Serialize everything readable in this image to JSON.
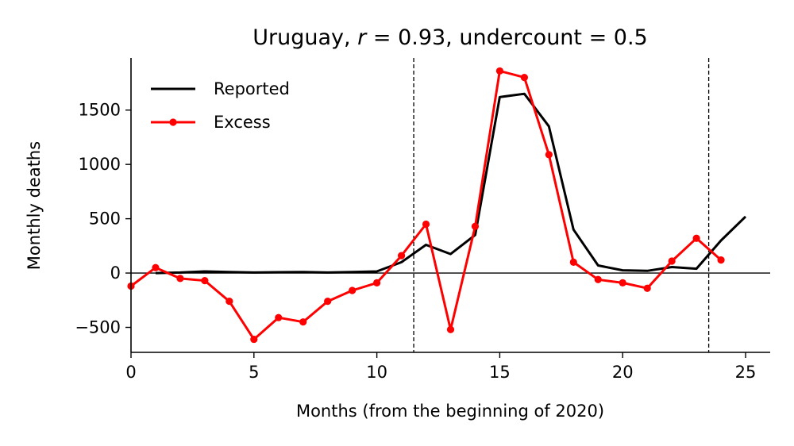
{
  "chart_data": {
    "type": "line",
    "title_prefix": "Uruguay, ",
    "title_r_var": "r",
    "title_r_rest": " = 0.93, undercount = 0.5",
    "xlabel": "Months (from the beginning of 2020)",
    "ylabel": "Monthly deaths",
    "xlim": [
      0,
      26
    ],
    "ylim": [
      -730,
      1980
    ],
    "xticks": [
      0,
      5,
      10,
      15,
      20,
      25
    ],
    "yticks": [
      -500,
      0,
      500,
      1000,
      1500
    ],
    "ytick_labels": [
      "−500",
      "0",
      "500",
      "1000",
      "1500"
    ],
    "reference_hline": 0,
    "reference_vlines": [
      11.5,
      23.5
    ],
    "legend_position": "top-left",
    "series": [
      {
        "name": "Reported",
        "color": "#000000",
        "marker": false,
        "x": [
          1,
          2,
          3,
          4,
          5,
          6,
          7,
          8,
          9,
          10,
          11,
          12,
          13,
          14,
          15,
          16,
          17,
          18,
          19,
          20,
          21,
          22,
          23,
          24,
          25
        ],
        "y": [
          0,
          5,
          15,
          10,
          5,
          8,
          10,
          5,
          10,
          15,
          100,
          260,
          175,
          350,
          1620,
          1650,
          1350,
          400,
          70,
          25,
          20,
          55,
          40,
          300,
          520
        ]
      },
      {
        "name": "Excess",
        "color": "#ff0000",
        "marker": true,
        "x": [
          0,
          1,
          2,
          3,
          4,
          5,
          6,
          7,
          8,
          9,
          10,
          11,
          12,
          13,
          14,
          15,
          16,
          17,
          18,
          19,
          20,
          21,
          22,
          23,
          24
        ],
        "y": [
          -120,
          50,
          -50,
          -70,
          -260,
          -610,
          -410,
          -450,
          -260,
          -160,
          -90,
          160,
          450,
          -520,
          430,
          1860,
          1800,
          1090,
          100,
          -60,
          -90,
          -140,
          110,
          320,
          120
        ]
      }
    ]
  }
}
